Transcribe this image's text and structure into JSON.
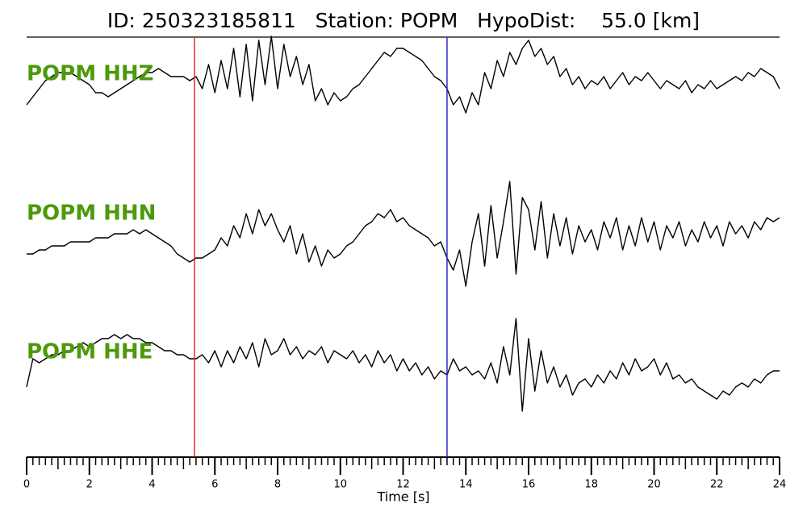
{
  "chart_data": {
    "type": "seismogram",
    "title": "ID: 250323185811   Station: POPM   HypoDist:    55.0 [km]",
    "xlabel": "Time [s]",
    "xlim": [
      0,
      24
    ],
    "xticks": [
      0,
      2,
      4,
      6,
      8,
      10,
      12,
      14,
      16,
      18,
      20,
      22,
      24
    ],
    "xminorticks": [
      0.2,
      0.4,
      0.6,
      0.8,
      1,
      1.2,
      1.4,
      1.6,
      1.8,
      2.2,
      2.4,
      2.6,
      2.8,
      3,
      3.2,
      3.4,
      3.6,
      3.8,
      4.2,
      4.4,
      4.6,
      4.8,
      5,
      5.2,
      5.4,
      5.6,
      5.8,
      6.2,
      6.4,
      6.6,
      6.8,
      7,
      7.2,
      7.4,
      7.6,
      7.8,
      8.2,
      8.4,
      8.6,
      8.8,
      9,
      9.2,
      9.4,
      9.6,
      9.8,
      10.2,
      10.4,
      10.6,
      10.8,
      11,
      11.2,
      11.4,
      11.6,
      11.8,
      12.2,
      12.4,
      12.6,
      12.8,
      13,
      13.2,
      13.4,
      13.6,
      13.8,
      14.2,
      14.4,
      14.6,
      14.8,
      15,
      15.2,
      15.4,
      15.6,
      15.8,
      16.2,
      16.4,
      16.6,
      16.8,
      17,
      17.2,
      17.4,
      17.6,
      17.8,
      18.2,
      18.4,
      18.6,
      18.8,
      19,
      19.2,
      19.4,
      19.6,
      19.8,
      20.2,
      20.4,
      20.6,
      20.8,
      21,
      21.2,
      21.4,
      21.6,
      21.8,
      22.2,
      22.4,
      22.6,
      22.8,
      23,
      23.2,
      23.4,
      23.6,
      23.8
    ],
    "label_color": "#4c9a0a",
    "markers": [
      {
        "x": 5.35,
        "color": "#e8262b"
      },
      {
        "x": 13.4,
        "color": "#2b2bc8"
      }
    ],
    "x": [
      0,
      0.2,
      0.4,
      0.6,
      0.8,
      1,
      1.2,
      1.4,
      1.6,
      1.8,
      2,
      2.2,
      2.4,
      2.6,
      2.8,
      3,
      3.2,
      3.4,
      3.6,
      3.8,
      4,
      4.2,
      4.4,
      4.6,
      4.8,
      5,
      5.2,
      5.4,
      5.6,
      5.8,
      6,
      6.2,
      6.4,
      6.6,
      6.8,
      7,
      7.2,
      7.4,
      7.6,
      7.8,
      8,
      8.2,
      8.4,
      8.6,
      8.8,
      9,
      9.2,
      9.4,
      9.6,
      9.8,
      10,
      10.2,
      10.4,
      10.6,
      10.8,
      11,
      11.2,
      11.4,
      11.6,
      11.8,
      12,
      12.2,
      12.4,
      12.6,
      12.8,
      13,
      13.2,
      13.4,
      13.6,
      13.8,
      14,
      14.2,
      14.4,
      14.6,
      14.8,
      15,
      15.2,
      15.4,
      15.6,
      15.8,
      16,
      16.2,
      16.4,
      16.6,
      16.8,
      17,
      17.2,
      17.4,
      17.6,
      17.8,
      18,
      18.2,
      18.4,
      18.6,
      18.8,
      19,
      19.2,
      19.4,
      19.6,
      19.8,
      20,
      20.2,
      20.4,
      20.6,
      20.8,
      21,
      21.2,
      21.4,
      21.6,
      21.8,
      22,
      22.2,
      22.4,
      22.6,
      22.8,
      23,
      23.2,
      23.4,
      23.6,
      23.8,
      24
    ],
    "series": [
      {
        "name": "POPM HHZ",
        "color": "#000000",
        "values": [
          -7,
          -5,
          -3,
          -1,
          0,
          1,
          1,
          1,
          0,
          -1,
          -2,
          -4,
          -4,
          -5,
          -4,
          -3,
          -2,
          -1,
          0,
          1,
          1,
          2,
          1,
          0,
          0,
          0,
          -1,
          0,
          -3,
          3,
          -4,
          4,
          -3,
          7,
          -5,
          8,
          -6,
          9,
          -2,
          10,
          -3,
          8,
          0,
          5,
          -2,
          3,
          -6,
          -3,
          -7,
          -4,
          -6,
          -5,
          -3,
          -2,
          0,
          2,
          4,
          6,
          5,
          7,
          7,
          6,
          5,
          4,
          2,
          0,
          -1,
          -3,
          -7,
          -5,
          -9,
          -4,
          -7,
          1,
          -3,
          4,
          0,
          6,
          3,
          7,
          9,
          5,
          7,
          3,
          5,
          0,
          2,
          -2,
          0,
          -3,
          -1,
          -2,
          0,
          -3,
          -1,
          1,
          -2,
          0,
          -1,
          1,
          -1,
          -3,
          -1,
          -2,
          -3,
          -1,
          -4,
          -2,
          -3,
          -1,
          -3,
          -2,
          -1,
          0,
          -1,
          1,
          0,
          2,
          1,
          0,
          -3
        ]
      },
      {
        "name": "POPM HHN",
        "color": "#000000",
        "values": [
          -5,
          -5,
          -4,
          -4,
          -3,
          -3,
          -3,
          -2,
          -2,
          -2,
          -2,
          -1,
          -1,
          -1,
          0,
          0,
          0,
          1,
          0,
          1,
          0,
          -1,
          -2,
          -3,
          -5,
          -6,
          -7,
          -6,
          -6,
          -5,
          -4,
          -1,
          -3,
          2,
          -1,
          5,
          0,
          6,
          2,
          5,
          1,
          -2,
          2,
          -5,
          0,
          -7,
          -3,
          -8,
          -4,
          -6,
          -5,
          -3,
          -2,
          0,
          2,
          3,
          5,
          4,
          6,
          3,
          4,
          2,
          1,
          0,
          -1,
          -3,
          -2,
          -6,
          -9,
          -4,
          -13,
          -2,
          5,
          -8,
          7,
          -6,
          3,
          13,
          -10,
          9,
          6,
          -4,
          8,
          -6,
          5,
          -3,
          4,
          -5,
          2,
          -2,
          1,
          -4,
          3,
          -1,
          4,
          -4,
          2,
          -3,
          4,
          -2,
          3,
          -4,
          2,
          -1,
          3,
          -3,
          1,
          -2,
          3,
          -1,
          2,
          -3,
          3,
          0,
          2,
          -1,
          3,
          1,
          4,
          3,
          4
        ]
      },
      {
        "name": "POPM HHE",
        "color": "#000000",
        "values": [
          -6,
          1,
          0,
          1,
          2,
          2,
          3,
          3,
          4,
          5,
          4,
          5,
          6,
          6,
          7,
          6,
          7,
          6,
          6,
          5,
          5,
          4,
          3,
          3,
          2,
          2,
          1,
          1,
          2,
          0,
          3,
          -1,
          3,
          0,
          4,
          1,
          5,
          -1,
          6,
          2,
          3,
          6,
          2,
          4,
          1,
          3,
          2,
          4,
          0,
          3,
          2,
          1,
          3,
          0,
          2,
          -1,
          3,
          0,
          2,
          -2,
          1,
          -2,
          0,
          -3,
          -1,
          -4,
          -2,
          -3,
          1,
          -2,
          -1,
          -3,
          -2,
          -4,
          0,
          -5,
          4,
          -3,
          11,
          -12,
          6,
          -7,
          3,
          -5,
          -1,
          -6,
          -3,
          -8,
          -5,
          -4,
          -6,
          -3,
          -5,
          -2,
          -4,
          0,
          -3,
          1,
          -2,
          -1,
          1,
          -3,
          0,
          -4,
          -3,
          -5,
          -4,
          -6,
          -7,
          -8,
          -9,
          -7,
          -8,
          -6,
          -5,
          -6,
          -4,
          -5,
          -3,
          -2,
          -2
        ]
      }
    ]
  }
}
